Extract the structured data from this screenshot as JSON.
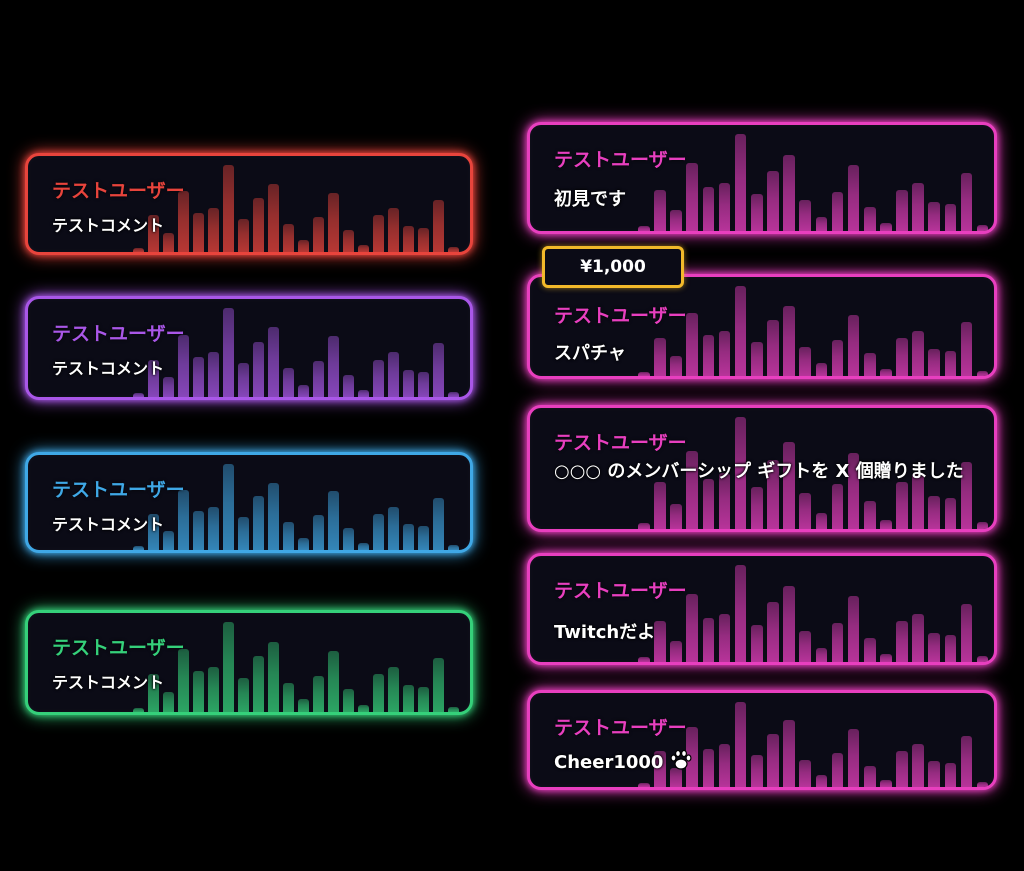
{
  "colors": {
    "red": "#e8443c",
    "purple": "#a957e8",
    "blue": "#3fa8e6",
    "green": "#35d07a",
    "pink": "#e83fbf",
    "gold": "#f2b92a"
  },
  "left_cards": [
    {
      "id": "card-l1",
      "user": "テストユーザー",
      "comment": "テストコメント",
      "color": "red"
    },
    {
      "id": "card-l2",
      "user": "テストユーザー",
      "comment": "テストコメント",
      "color": "purple"
    },
    {
      "id": "card-l3",
      "user": "テストユーザー",
      "comment": "テストコメント",
      "color": "blue"
    },
    {
      "id": "card-l4",
      "user": "テストユーザー",
      "comment": "テストコメント",
      "color": "green"
    }
  ],
  "right_cards": [
    {
      "id": "card-r1",
      "user": "テストユーザー",
      "comment": "初見です",
      "color": "pink"
    },
    {
      "id": "card-r2",
      "user": "テストユーザー",
      "comment": "スパチャ",
      "color": "pink"
    },
    {
      "id": "card-r3",
      "user": "テストユーザー",
      "comment": "○○○ のメンバーシップ ギフトを X 個贈りました",
      "color": "pink"
    },
    {
      "id": "card-r4",
      "user": "テストユーザー",
      "comment": "Twitchだよ",
      "color": "pink"
    },
    {
      "id": "card-r5",
      "user": "テストユーザー",
      "comment": "Cheer1000",
      "color": "pink",
      "icon": "paw-icon"
    }
  ],
  "superchat": {
    "amount": "¥1,000"
  },
  "equalizer_levels": [
    0.05,
    0.42,
    0.22,
    0.7,
    0.45,
    0.5,
    1.0,
    0.38,
    0.62,
    0.78,
    0.32,
    0.14,
    0.4,
    0.68,
    0.25,
    0.08,
    0.42,
    0.5,
    0.3,
    0.28,
    0.6,
    0.06
  ]
}
